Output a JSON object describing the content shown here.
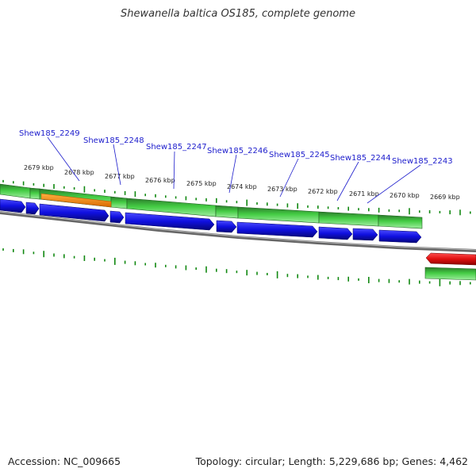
{
  "header": {
    "title": "Shewanella baltica OS185, complete genome"
  },
  "footer": {
    "accession_label": "Accession:",
    "accession": "NC_009665",
    "topology_label": "Topology:",
    "topology": "circular",
    "length_label": "Length:",
    "length": "5,229,686 bp",
    "genes_label": "Genes:",
    "genes": "4,462"
  },
  "map": {
    "kbp_ticks": [
      "2679 kbp",
      "2678 kbp",
      "2677 kbp",
      "2676 kbp",
      "2675 kbp",
      "2674 kbp",
      "2673 kbp",
      "2672 kbp",
      "2671 kbp",
      "2670 kbp",
      "2669 kbp"
    ],
    "gene_labels": [
      "Shew185_2249",
      "Shew185_2248",
      "Shew185_2247",
      "Shew185_2246",
      "Shew185_2245",
      "Shew185_2244",
      "Shew185_2243"
    ]
  },
  "colors": {
    "gene_forward": "#1010e0",
    "gene_reverse": "#e01010",
    "cds_band": "#33cc33",
    "rna_band": "#ee8a10",
    "backbone": "#888888",
    "gc_ticks": "#118811",
    "gene_label": "#1c1ccc"
  }
}
